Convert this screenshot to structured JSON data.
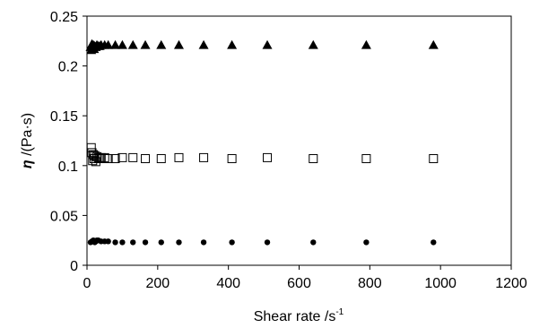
{
  "chart_data": {
    "type": "scatter",
    "xlabel": "Shear rate /s",
    "xlabel_superscript": "-1",
    "ylabel_symbol": "η",
    "ylabel": " /(Pa·s)",
    "xlim": [
      0,
      1200
    ],
    "ylim": [
      0,
      0.25
    ],
    "x_ticks": [
      "0",
      "200",
      "400",
      "600",
      "800",
      "1000",
      "1200"
    ],
    "y_ticks": [
      "0",
      "0.05",
      "0.1",
      "0.15",
      "0.2",
      "0.25"
    ],
    "grid": false,
    "legend": "none",
    "series": [
      {
        "marker": "triangle",
        "color": "#000000",
        "x": [
          10,
          12,
          14,
          16,
          18,
          20,
          22,
          25,
          28,
          32,
          36,
          40,
          50,
          60,
          80,
          100,
          130,
          165,
          210,
          260,
          330,
          410,
          510,
          640,
          790,
          980
        ],
        "y": [
          0.219,
          0.216,
          0.222,
          0.218,
          0.221,
          0.217,
          0.22,
          0.219,
          0.221,
          0.22,
          0.22,
          0.221,
          0.221,
          0.221,
          0.221,
          0.221,
          0.221,
          0.221,
          0.221,
          0.221,
          0.221,
          0.221,
          0.221,
          0.221,
          0.221,
          0.221
        ]
      },
      {
        "marker": "square-open",
        "color": "#000000",
        "x": [
          12,
          14,
          16,
          18,
          20,
          22,
          25,
          28,
          32,
          36,
          40,
          50,
          60,
          80,
          100,
          130,
          165,
          210,
          260,
          330,
          410,
          510,
          640,
          790,
          980
        ],
        "y": [
          0.118,
          0.113,
          0.105,
          0.111,
          0.107,
          0.11,
          0.104,
          0.109,
          0.108,
          0.107,
          0.108,
          0.108,
          0.107,
          0.107,
          0.108,
          0.108,
          0.107,
          0.107,
          0.108,
          0.108,
          0.107,
          0.108,
          0.107,
          0.107,
          0.107
        ]
      },
      {
        "marker": "circle",
        "color": "#000000",
        "x": [
          10,
          14,
          18,
          22,
          25,
          28,
          32,
          40,
          50,
          60,
          80,
          100,
          130,
          165,
          210,
          260,
          330,
          410,
          510,
          640,
          790,
          980
        ],
        "y": [
          0.023,
          0.024,
          0.025,
          0.023,
          0.024,
          0.025,
          0.025,
          0.024,
          0.024,
          0.024,
          0.023,
          0.023,
          0.023,
          0.023,
          0.023,
          0.023,
          0.023,
          0.023,
          0.023,
          0.023,
          0.023,
          0.023
        ]
      }
    ]
  }
}
